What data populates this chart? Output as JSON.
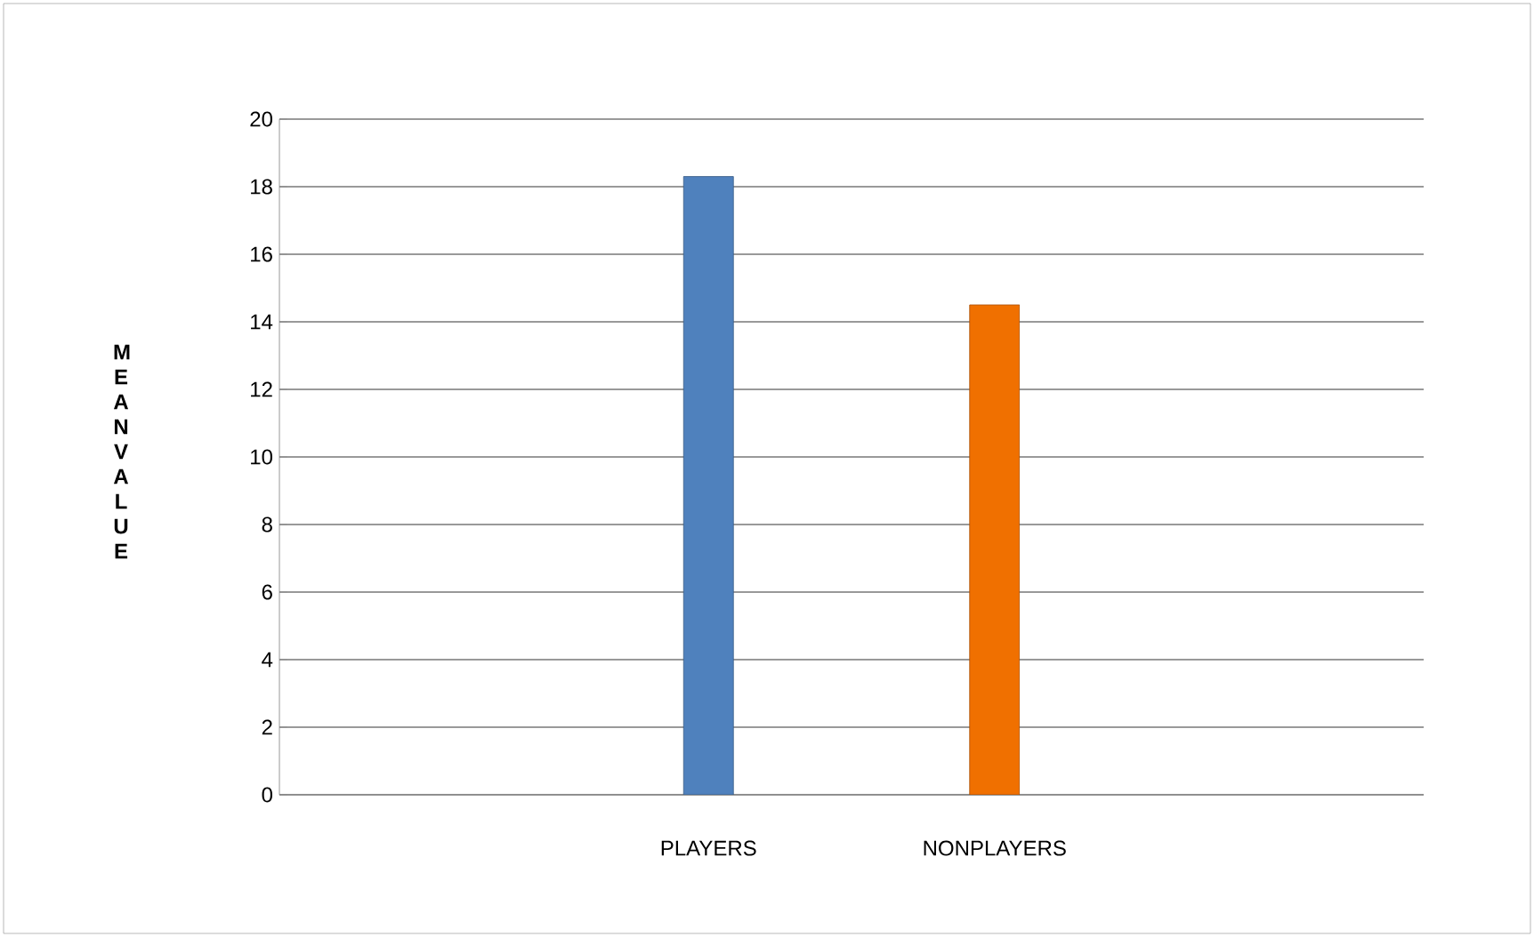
{
  "chart_data": {
    "type": "bar",
    "categories": [
      null,
      "PLAYERS",
      "NONPLAYERS",
      null
    ],
    "values": [
      null,
      18.3,
      14.5,
      null
    ],
    "colors": [
      "#4f81bd",
      "#4f81bd",
      "#f07000",
      "#f07000"
    ],
    "ylabel": "M E A N V A L U E",
    "ylim": [
      0,
      20
    ],
    "yticks": [
      0,
      2,
      4,
      6,
      8,
      10,
      12,
      14,
      16,
      18,
      20
    ],
    "grid": "y"
  }
}
